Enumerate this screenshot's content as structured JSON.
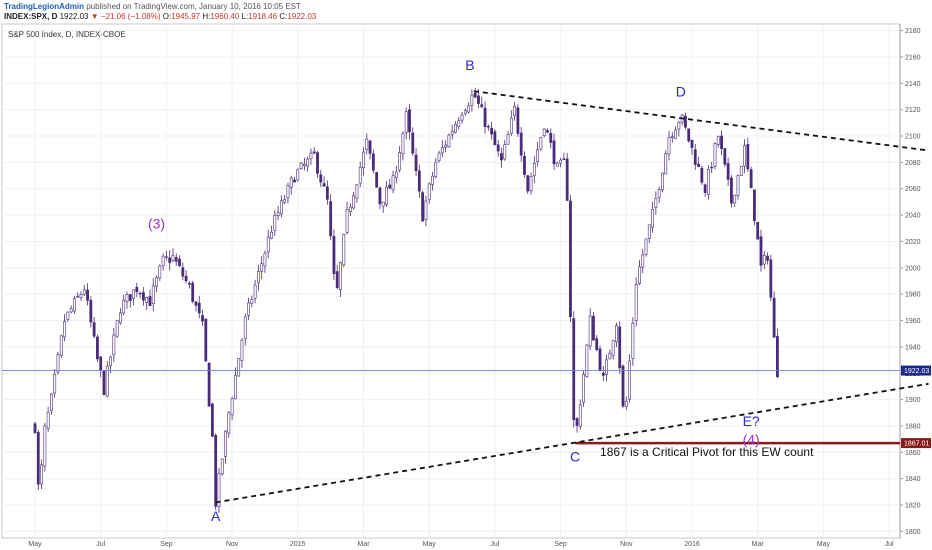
{
  "header": {
    "author": "TradingLegionAdmin",
    "published": "published on TradingView.com, January 10, 2016 10:05 EST",
    "symbol": "INDEX:SPX, D",
    "close_main": "1922.03",
    "arrow": "▼",
    "change": "−21.06 (−1.08%)",
    "o_label": "O:",
    "o_val": "1945.97",
    "h_label": "H:",
    "h_val": "1960.40",
    "l_label": "L:",
    "l_val": "1918.46",
    "c_label": "C:",
    "c_val": "1922.03"
  },
  "colors": {
    "candle": "#4a2b7a",
    "wave_abcd": "#2a2acd",
    "wave_paren": "#9b30c8",
    "pivot_line": "#8b1a1a",
    "price_line": "#6f7fd8",
    "price_label_bg": "#1c2a8f"
  },
  "chart_data": {
    "type": "candlestick",
    "title": "S&P 500 Index, D, INDEX-CBOE",
    "x_tick_labels": [
      "May",
      "Jul",
      "Sep",
      "Nov",
      "2015",
      "Mar",
      "May",
      "Jul",
      "Sep",
      "Nov",
      "2016",
      "Mar",
      "May",
      "Jul"
    ],
    "y_ticks": [
      1800,
      1820,
      1840,
      1860,
      1880,
      1900,
      1920,
      1940,
      1960,
      1980,
      2000,
      2020,
      2040,
      2060,
      2080,
      2100,
      2120,
      2140,
      2160,
      2180
    ],
    "ylim": [
      1795,
      2185
    ],
    "last_price": 1922.03,
    "last_price_label": "1922.03",
    "pivot_level": 1867.01,
    "pivot_label": "1867.01",
    "pivot_note": "1867 is a Critical Pivot for this EW count",
    "price_path": [
      {
        "x": 0,
        "y": 1880
      },
      {
        "x": 0.07,
        "y": 1815
      },
      {
        "x": 0.12,
        "y": 1870
      },
      {
        "x": 0.25,
        "y": 1900
      },
      {
        "x": 0.45,
        "y": 1960
      },
      {
        "x": 0.75,
        "y": 1985
      },
      {
        "x": 0.95,
        "y": 1930
      },
      {
        "x": 1.05,
        "y": 1908
      },
      {
        "x": 1.3,
        "y": 1970
      },
      {
        "x": 1.55,
        "y": 1985
      },
      {
        "x": 1.75,
        "y": 1975
      },
      {
        "x": 1.95,
        "y": 2005
      },
      {
        "x": 2.1,
        "y": 2008
      },
      {
        "x": 2.35,
        "y": 1985
      },
      {
        "x": 2.55,
        "y": 1955
      },
      {
        "x": 2.72,
        "y": 1860
      },
      {
        "x": 2.75,
        "y": 1822
      },
      {
        "x": 2.95,
        "y": 1890
      },
      {
        "x": 3.2,
        "y": 1960
      },
      {
        "x": 3.6,
        "y": 2030
      },
      {
        "x": 3.95,
        "y": 2070
      },
      {
        "x": 4.25,
        "y": 2085
      },
      {
        "x": 4.45,
        "y": 2050
      },
      {
        "x": 4.58,
        "y": 1975
      },
      {
        "x": 4.75,
        "y": 2040
      },
      {
        "x": 5.05,
        "y": 2095
      },
      {
        "x": 5.25,
        "y": 2050
      },
      {
        "x": 5.45,
        "y": 2065
      },
      {
        "x": 5.65,
        "y": 2115
      },
      {
        "x": 5.9,
        "y": 2040
      },
      {
        "x": 6.1,
        "y": 2080
      },
      {
        "x": 6.3,
        "y": 2100
      },
      {
        "x": 6.5,
        "y": 2120
      },
      {
        "x": 6.68,
        "y": 2132
      },
      {
        "x": 6.9,
        "y": 2105
      },
      {
        "x": 7.1,
        "y": 2080
      },
      {
        "x": 7.3,
        "y": 2120
      },
      {
        "x": 7.5,
        "y": 2060
      },
      {
        "x": 7.75,
        "y": 2110
      },
      {
        "x": 7.95,
        "y": 2075
      },
      {
        "x": 8.08,
        "y": 2080
      },
      {
        "x": 8.12,
        "y": 2030
      },
      {
        "x": 8.18,
        "y": 1900
      },
      {
        "x": 8.22,
        "y": 1867
      },
      {
        "x": 8.45,
        "y": 1960
      },
      {
        "x": 8.65,
        "y": 1915
      },
      {
        "x": 8.85,
        "y": 1960
      },
      {
        "x": 8.97,
        "y": 1880
      },
      {
        "x": 9.15,
        "y": 1990
      },
      {
        "x": 9.4,
        "y": 2040
      },
      {
        "x": 9.65,
        "y": 2100
      },
      {
        "x": 9.83,
        "y": 2115
      },
      {
        "x": 10.0,
        "y": 2090
      },
      {
        "x": 10.2,
        "y": 2060
      },
      {
        "x": 10.4,
        "y": 2100
      },
      {
        "x": 10.6,
        "y": 2050
      },
      {
        "x": 10.8,
        "y": 2090
      },
      {
        "x": 10.95,
        "y": 2040
      },
      {
        "x": 11.05,
        "y": 2000
      },
      {
        "x": 11.15,
        "y": 2010
      },
      {
        "x": 11.25,
        "y": 1945
      },
      {
        "x": 11.3,
        "y": 1922
      }
    ],
    "trendlines": [
      {
        "name": "upper",
        "points": [
          {
            "x": 6.68,
            "y": 2134
          },
          {
            "x": 13.6,
            "y": 2089
          }
        ]
      },
      {
        "name": "lower",
        "points": [
          {
            "x": 2.75,
            "y": 1822
          },
          {
            "x": 13.6,
            "y": 1912
          }
        ]
      }
    ],
    "wave_labels": [
      {
        "text": "(3)",
        "x": 1.85,
        "y": 2030,
        "style": "paren"
      },
      {
        "text": "A",
        "x": 2.75,
        "y": 1808,
        "style": "abcd"
      },
      {
        "text": "B",
        "x": 6.62,
        "y": 2150,
        "style": "abcd"
      },
      {
        "text": "C",
        "x": 8.22,
        "y": 1853,
        "style": "abcd"
      },
      {
        "text": "D",
        "x": 9.83,
        "y": 2130,
        "style": "abcd"
      },
      {
        "text": "E?",
        "x": 10.9,
        "y": 1880,
        "style": "abcd"
      },
      {
        "text": "(4)",
        "x": 10.9,
        "y": 1866,
        "style": "paren"
      }
    ]
  }
}
